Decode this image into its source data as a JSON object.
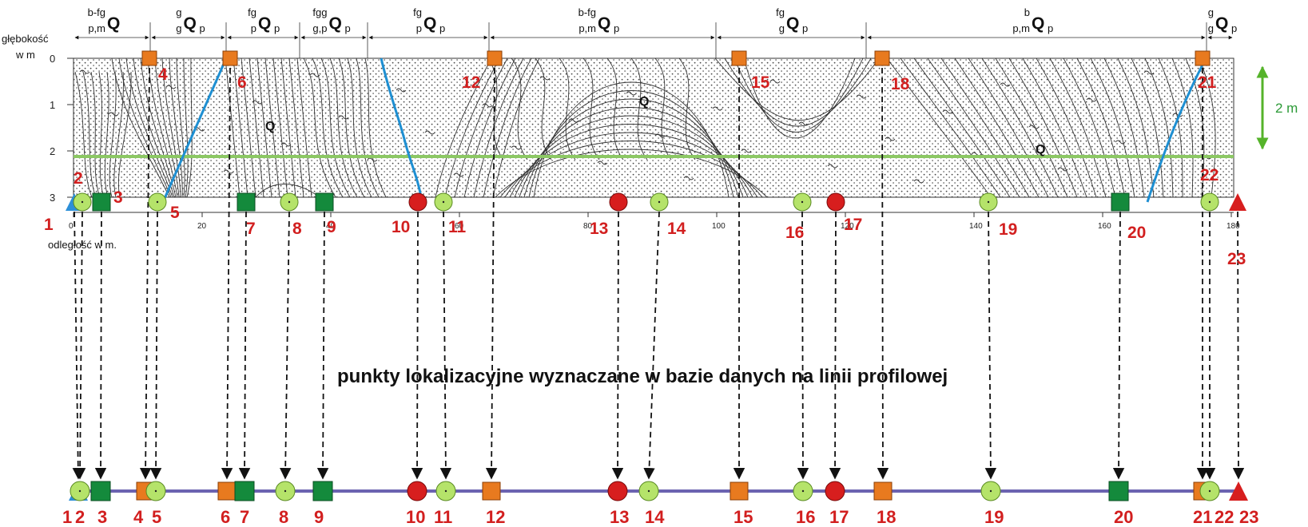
{
  "labels": {
    "depth_axis_line1": "głębokość",
    "depth_axis_line2": "w m",
    "distance_axis": "odległość w m.",
    "scale_bar": "2 m",
    "caption": "punkty lokalizacyjne wyznaczane w bazie danych na linii  profilowej",
    "lithology_symbol": "Q"
  },
  "depth_ticks": [
    "0",
    "1",
    "2",
    "3"
  ],
  "distance_ticks": [
    "0",
    "20",
    "40",
    "60",
    "80",
    "100",
    "120",
    "140",
    "160",
    "180"
  ],
  "stratigraphy": [
    {
      "sup_pre": "b-fg",
      "sub_pre": "p,m",
      "main": "Q",
      "sub_post": ""
    },
    {
      "sup_pre": "g",
      "sub_pre": "g",
      "main": "Q",
      "sub_post": "p"
    },
    {
      "sup_pre": "fg",
      "sub_pre": "p",
      "main": "Q",
      "sub_post": "p"
    },
    {
      "sup_pre": "fgg",
      "sub_pre": "g,p",
      "main": "Q",
      "sub_post": "p"
    },
    {
      "sup_pre": "fg",
      "sub_pre": "p",
      "main": "Q",
      "sub_post": "p"
    },
    {
      "sup_pre": "b-fg",
      "sub_pre": "p,m",
      "main": "Q",
      "sub_post": "p"
    },
    {
      "sup_pre": "fg",
      "sub_pre": "g",
      "main": "Q",
      "sub_post": "p"
    },
    {
      "sup_pre": "b",
      "sub_pre": "p,m",
      "main": "Q",
      "sub_post": "p"
    },
    {
      "sup_pre": "g",
      "sub_pre": "g",
      "main": "Q",
      "sub_post": "p"
    }
  ],
  "colors": {
    "orange_square": "#e87a1f",
    "green_square": "#148a3c",
    "light_green_circle": "#b5e36a",
    "red_circle": "#d71e1e",
    "blue_triangle": "#2d8fd8",
    "red_triangle": "#d71e1e",
    "profile_line": "#6b63b0",
    "blue_boundary": "#1e8fd2",
    "green_line": "#8cc864",
    "scale_arrow": "#55b32a",
    "number_color": "#d21f1f"
  },
  "points": [
    {
      "id": "1",
      "symbol": "blue-triangle"
    },
    {
      "id": "2",
      "symbol": "light-green-circle"
    },
    {
      "id": "3",
      "symbol": "green-square"
    },
    {
      "id": "4",
      "symbol": "orange-square"
    },
    {
      "id": "5",
      "symbol": "light-green-circle"
    },
    {
      "id": "6",
      "symbol": "orange-square"
    },
    {
      "id": "7",
      "symbol": "green-square"
    },
    {
      "id": "8",
      "symbol": "light-green-circle"
    },
    {
      "id": "9",
      "symbol": "green-square"
    },
    {
      "id": "10",
      "symbol": "red-circle"
    },
    {
      "id": "11",
      "symbol": "light-green-circle"
    },
    {
      "id": "12",
      "symbol": "orange-square"
    },
    {
      "id": "13",
      "symbol": "red-circle"
    },
    {
      "id": "14",
      "symbol": "light-green-circle"
    },
    {
      "id": "15",
      "symbol": "orange-square"
    },
    {
      "id": "16",
      "symbol": "light-green-circle"
    },
    {
      "id": "17",
      "symbol": "red-circle"
    },
    {
      "id": "18",
      "symbol": "orange-square"
    },
    {
      "id": "19",
      "symbol": "light-green-circle"
    },
    {
      "id": "20",
      "symbol": "green-square"
    },
    {
      "id": "21",
      "symbol": "orange-square"
    },
    {
      "id": "22",
      "symbol": "light-green-circle"
    },
    {
      "id": "23",
      "symbol": "red-triangle"
    }
  ]
}
